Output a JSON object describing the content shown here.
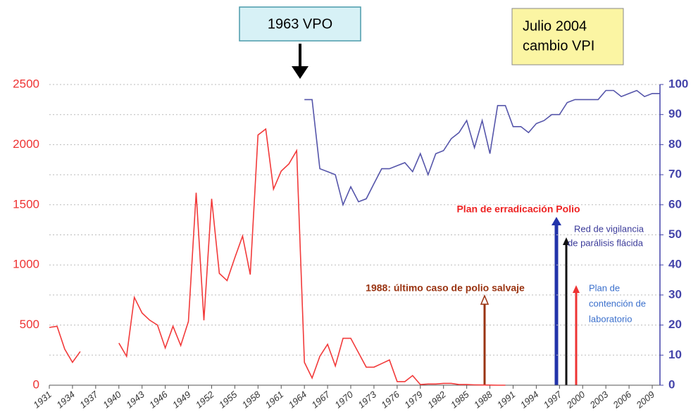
{
  "chart_data": {
    "type": "line",
    "x": [
      1931,
      1932,
      1933,
      1934,
      1935,
      1936,
      1937,
      1938,
      1939,
      1940,
      1941,
      1942,
      1943,
      1944,
      1945,
      1946,
      1947,
      1948,
      1949,
      1950,
      1951,
      1952,
      1953,
      1954,
      1955,
      1956,
      1957,
      1958,
      1959,
      1960,
      1961,
      1962,
      1963,
      1964,
      1965,
      1966,
      1967,
      1968,
      1969,
      1970,
      1971,
      1972,
      1973,
      1974,
      1975,
      1976,
      1977,
      1978,
      1979,
      1980,
      1981,
      1982,
      1983,
      1984,
      1985,
      1986,
      1987,
      1988,
      1989,
      1990,
      1991,
      1992,
      1993,
      1994,
      1995,
      1996,
      1997,
      1998,
      1999,
      2000,
      2001,
      2002,
      2003,
      2004,
      2005,
      2006,
      2007,
      2008,
      2009,
      2010
    ],
    "series": [
      {
        "color": "#f23a3a",
        "values": [
          480,
          490,
          300,
          190,
          280,
          null,
          null,
          null,
          null,
          350,
          240,
          730,
          600,
          540,
          500,
          310,
          490,
          330,
          530,
          1600,
          540,
          1550,
          930,
          870,
          1060,
          1240,
          920,
          2080,
          2130,
          1630,
          1780,
          1840,
          1950,
          190,
          60,
          240,
          340,
          160,
          390,
          390,
          270,
          150,
          150,
          180,
          210,
          30,
          30,
          80,
          5,
          10,
          10,
          15,
          15,
          5,
          5,
          3,
          2,
          1,
          0,
          0,
          null,
          null,
          null,
          null,
          null,
          null,
          null,
          null,
          null,
          null,
          null,
          null,
          null,
          null,
          null,
          null,
          null,
          null,
          null,
          null
        ]
      },
      {
        "color": "#5555aa",
        "axis": "y2",
        "values": [
          null,
          null,
          null,
          null,
          null,
          null,
          null,
          null,
          null,
          null,
          null,
          null,
          null,
          null,
          null,
          null,
          null,
          null,
          null,
          null,
          null,
          null,
          null,
          null,
          null,
          null,
          null,
          null,
          null,
          null,
          null,
          null,
          null,
          95,
          95,
          72,
          71,
          70,
          60,
          66,
          61,
          62,
          67,
          72,
          72,
          73,
          74,
          71,
          77,
          70,
          77,
          78,
          82,
          84,
          88,
          79,
          88,
          77,
          93,
          93,
          86,
          86,
          84,
          87,
          88,
          90,
          90,
          94,
          95,
          95,
          95,
          95,
          98,
          98,
          96,
          97,
          98,
          96,
          97,
          97
        ]
      }
    ],
    "xlim": [
      1931,
      2010
    ],
    "xticks": [
      1931,
      1934,
      1937,
      1940,
      1943,
      1946,
      1949,
      1952,
      1955,
      1958,
      1961,
      1964,
      1967,
      1970,
      1973,
      1976,
      1979,
      1982,
      1985,
      1988,
      1991,
      1994,
      1997,
      2000,
      2003,
      2006,
      2009
    ],
    "ylim": [
      0,
      2500
    ],
    "yticks": [
      0,
      500,
      1000,
      1500,
      2000,
      2500
    ],
    "y2lim": [
      0,
      100
    ],
    "y2ticks": [
      0,
      10,
      20,
      30,
      40,
      50,
      60,
      70,
      80,
      90,
      100
    ],
    "grid": true,
    "annotations": {
      "vpo": "1963 VPO",
      "vpi": [
        "Julio 2004",
        "cambio VPI"
      ],
      "plan": "Plan de erradicación Polio",
      "red": [
        "Red de vigilancia",
        "de parálisis flácida"
      ],
      "contencion": [
        "Plan de",
        "contención de",
        "laboratorio"
      ],
      "ultimo": "1988: último caso de polio salvaje"
    }
  }
}
